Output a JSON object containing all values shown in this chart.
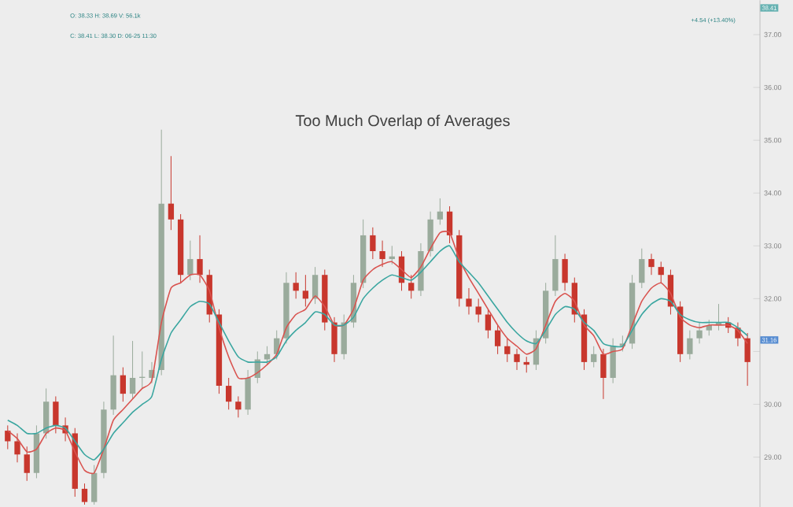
{
  "chart_data": {
    "type": "candlestick",
    "title": "Too Much Overlap of Averages",
    "annotations": [
      "O: 38.33 H: 38.69 V: 56.1k",
      "C: 38.41 L: 38.30 D: 06-25 11:30",
      "+4.54 (+13.40%)",
      "38.41",
      "31.16"
    ],
    "categories": [
      null,
      null,
      null,
      null,
      null,
      null,
      null,
      null,
      null,
      null,
      null,
      null,
      null,
      null,
      null,
      null,
      null,
      null,
      null,
      null,
      null,
      null,
      null,
      null,
      null,
      null,
      null,
      null,
      null,
      null,
      null,
      null,
      null,
      null,
      null,
      null,
      null,
      null,
      null,
      null,
      null,
      null,
      null,
      null,
      null,
      null,
      null,
      null,
      null,
      null,
      null,
      null,
      null,
      null,
      null,
      null,
      null,
      null,
      null,
      null,
      null,
      null,
      null,
      null,
      null,
      null,
      null,
      null,
      null,
      null,
      null,
      null,
      null,
      null,
      null,
      null,
      null,
      null
    ],
    "ohlc": [
      [
        29.5,
        29.6,
        29.15,
        29.3
      ],
      [
        29.3,
        29.45,
        28.9,
        29.05
      ],
      [
        29.05,
        29.2,
        28.55,
        28.7
      ],
      [
        28.7,
        29.6,
        28.6,
        29.45
      ],
      [
        29.45,
        30.3,
        29.35,
        30.05
      ],
      [
        30.05,
        30.15,
        29.45,
        29.6
      ],
      [
        29.6,
        29.75,
        29.3,
        29.45
      ],
      [
        29.45,
        29.55,
        28.25,
        28.4
      ],
      [
        28.4,
        28.5,
        28.1,
        28.15
      ],
      [
        28.15,
        28.85,
        28.1,
        28.7
      ],
      [
        28.7,
        30.05,
        28.6,
        29.9
      ],
      [
        29.9,
        31.3,
        29.8,
        30.55
      ],
      [
        30.55,
        30.7,
        30.05,
        30.2
      ],
      [
        30.2,
        31.2,
        30.1,
        30.5
      ],
      [
        30.5,
        31.0,
        30.3,
        30.5
      ],
      [
        30.5,
        30.8,
        30.4,
        30.65
      ],
      [
        30.65,
        35.2,
        30.55,
        33.8
      ],
      [
        33.8,
        34.7,
        33.3,
        33.5
      ],
      [
        33.5,
        33.6,
        32.3,
        32.45
      ],
      [
        32.45,
        33.1,
        32.35,
        32.75
      ],
      [
        32.75,
        33.2,
        32.3,
        32.45
      ],
      [
        32.45,
        32.55,
        31.55,
        31.7
      ],
      [
        31.7,
        31.8,
        30.2,
        30.35
      ],
      [
        30.35,
        30.5,
        29.9,
        30.05
      ],
      [
        30.05,
        30.15,
        29.75,
        29.9
      ],
      [
        29.9,
        30.65,
        29.8,
        30.5
      ],
      [
        30.5,
        31.0,
        30.4,
        30.85
      ],
      [
        30.85,
        31.1,
        30.75,
        30.95
      ],
      [
        30.95,
        31.4,
        30.85,
        31.25
      ],
      [
        31.25,
        32.5,
        31.15,
        32.3
      ],
      [
        32.3,
        32.5,
        32.0,
        32.15
      ],
      [
        32.15,
        32.45,
        31.85,
        32.0
      ],
      [
        32.0,
        32.6,
        31.9,
        32.45
      ],
      [
        32.45,
        32.55,
        31.4,
        31.55
      ],
      [
        31.55,
        31.65,
        30.8,
        30.95
      ],
      [
        30.95,
        31.7,
        30.85,
        31.55
      ],
      [
        31.55,
        32.45,
        31.45,
        32.3
      ],
      [
        32.3,
        33.5,
        32.2,
        33.2
      ],
      [
        33.2,
        33.35,
        32.75,
        32.9
      ],
      [
        32.9,
        33.1,
        32.6,
        32.75
      ],
      [
        32.75,
        33.0,
        32.65,
        32.8
      ],
      [
        32.8,
        32.9,
        32.15,
        32.3
      ],
      [
        32.3,
        32.45,
        32.0,
        32.15
      ],
      [
        32.15,
        33.05,
        32.05,
        32.9
      ],
      [
        32.9,
        33.65,
        32.8,
        33.5
      ],
      [
        33.5,
        33.9,
        33.4,
        33.65
      ],
      [
        33.65,
        33.75,
        33.05,
        33.2
      ],
      [
        33.2,
        33.3,
        31.85,
        32.0
      ],
      [
        32.0,
        32.2,
        31.7,
        31.85
      ],
      [
        31.85,
        32.0,
        31.55,
        31.7
      ],
      [
        31.7,
        31.8,
        31.25,
        31.4
      ],
      [
        31.4,
        31.5,
        30.95,
        31.1
      ],
      [
        31.1,
        31.25,
        30.8,
        30.95
      ],
      [
        30.95,
        31.05,
        30.65,
        30.8
      ],
      [
        30.8,
        30.9,
        30.6,
        30.75
      ],
      [
        30.75,
        31.4,
        30.65,
        31.25
      ],
      [
        31.25,
        32.3,
        31.15,
        32.15
      ],
      [
        32.15,
        33.2,
        32.05,
        32.75
      ],
      [
        32.75,
        32.85,
        32.15,
        32.3
      ],
      [
        32.3,
        32.4,
        31.55,
        31.7
      ],
      [
        31.7,
        31.8,
        30.65,
        30.8
      ],
      [
        30.8,
        31.1,
        30.7,
        30.95
      ],
      [
        30.95,
        31.05,
        30.1,
        30.5
      ],
      [
        30.5,
        31.25,
        30.4,
        31.1
      ],
      [
        31.1,
        31.3,
        31.0,
        31.15
      ],
      [
        31.15,
        32.45,
        31.05,
        32.3
      ],
      [
        32.3,
        32.95,
        32.2,
        32.75
      ],
      [
        32.75,
        32.85,
        32.45,
        32.6
      ],
      [
        32.6,
        32.7,
        32.3,
        32.45
      ],
      [
        32.45,
        32.55,
        31.7,
        31.85
      ],
      [
        31.85,
        31.95,
        30.8,
        30.95
      ],
      [
        30.95,
        31.4,
        30.85,
        31.25
      ],
      [
        31.25,
        31.55,
        31.15,
        31.4
      ],
      [
        31.4,
        31.6,
        31.3,
        31.5
      ],
      [
        31.5,
        31.9,
        31.4,
        31.55
      ],
      [
        31.55,
        31.65,
        31.35,
        31.45
      ],
      [
        31.45,
        31.55,
        31.1,
        31.25
      ],
      [
        31.25,
        31.35,
        30.35,
        30.8
      ]
    ],
    "colors": [
      "#c8372d",
      "#c8372d",
      "#c8372d",
      "#9aab9c",
      "#9aab9c",
      "#c8372d",
      "#c8372d",
      "#c8372d",
      "#c8372d",
      "#9aab9c",
      "#9aab9c",
      "#9aab9c",
      "#c8372d",
      "#9aab9c",
      "#9aab9c",
      "#9aab9c",
      "#9aab9c",
      "#c8372d",
      "#c8372d",
      "#9aab9c",
      "#c8372d",
      "#c8372d",
      "#c8372d",
      "#c8372d",
      "#c8372d",
      "#9aab9c",
      "#9aab9c",
      "#9aab9c",
      "#9aab9c",
      "#9aab9c",
      "#c8372d",
      "#c8372d",
      "#9aab9c",
      "#c8372d",
      "#c8372d",
      "#9aab9c",
      "#9aab9c",
      "#9aab9c",
      "#c8372d",
      "#c8372d",
      "#9aab9c",
      "#c8372d",
      "#c8372d",
      "#9aab9c",
      "#9aab9c",
      "#9aab9c",
      "#c8372d",
      "#c8372d",
      "#c8372d",
      "#c8372d",
      "#c8372d",
      "#c8372d",
      "#c8372d",
      "#c8372d",
      "#c8372d",
      "#9aab9c",
      "#9aab9c",
      "#9aab9c",
      "#c8372d",
      "#c8372d",
      "#c8372d",
      "#9aab9c",
      "#c8372d",
      "#9aab9c",
      "#9aab9c",
      "#9aab9c",
      "#9aab9c",
      "#c8372d",
      "#c8372d",
      "#c8372d",
      "#c8372d",
      "#9aab9c",
      "#9aab9c",
      "#9aab9c",
      "#9aab9c",
      "#c8372d",
      "#c8372d",
      "#c8372d"
    ],
    "series": [
      {
        "type": "line",
        "color": "#d9534f",
        "values": [
          29.5,
          29.35,
          29.1,
          29.15,
          29.45,
          29.55,
          29.5,
          29.1,
          28.75,
          28.7,
          29.15,
          29.7,
          29.9,
          30.1,
          30.3,
          30.45,
          31.55,
          32.2,
          32.3,
          32.45,
          32.45,
          32.15,
          31.45,
          30.9,
          30.5,
          30.5,
          30.6,
          30.75,
          30.95,
          31.45,
          31.7,
          31.8,
          32.05,
          31.85,
          31.5,
          31.5,
          31.8,
          32.35,
          32.55,
          32.65,
          32.7,
          32.55,
          32.4,
          32.6,
          32.95,
          33.25,
          33.25,
          32.75,
          32.4,
          32.1,
          31.8,
          31.5,
          31.25,
          31.1,
          30.95,
          31.05,
          31.5,
          31.95,
          32.1,
          31.95,
          31.5,
          31.3,
          30.95,
          31.0,
          31.05,
          31.5,
          31.95,
          32.2,
          32.3,
          32.1,
          31.65,
          31.5,
          31.45,
          31.5,
          31.5,
          31.5,
          31.4,
          31.15
        ]
      },
      {
        "type": "line",
        "color": "#3aa6a0",
        "values": [
          29.7,
          29.6,
          29.45,
          29.45,
          29.55,
          29.6,
          29.55,
          29.3,
          29.05,
          28.95,
          29.15,
          29.45,
          29.65,
          29.85,
          30.0,
          30.15,
          30.85,
          31.35,
          31.6,
          31.85,
          31.95,
          31.9,
          31.55,
          31.2,
          30.9,
          30.8,
          30.8,
          30.8,
          30.9,
          31.2,
          31.4,
          31.55,
          31.75,
          31.7,
          31.5,
          31.5,
          31.65,
          32.0,
          32.2,
          32.35,
          32.45,
          32.4,
          32.35,
          32.5,
          32.7,
          32.9,
          33.0,
          32.7,
          32.5,
          32.3,
          32.05,
          31.8,
          31.55,
          31.35,
          31.2,
          31.15,
          31.4,
          31.7,
          31.85,
          31.8,
          31.55,
          31.4,
          31.15,
          31.1,
          31.1,
          31.4,
          31.7,
          31.9,
          32.0,
          31.95,
          31.7,
          31.6,
          31.55,
          31.55,
          31.55,
          31.55,
          31.45,
          31.3
        ]
      }
    ],
    "ylim": [
      28.05,
      37.65
    ],
    "yticks": [
      {
        "value": 29,
        "label": "29.00"
      },
      {
        "value": 30,
        "label": "30.00"
      },
      {
        "value": 31,
        "label": null
      },
      {
        "value": 32,
        "label": "32.00"
      },
      {
        "value": 33,
        "label": "33.00"
      },
      {
        "value": 34,
        "label": "34.00"
      },
      {
        "value": 35,
        "label": "35.00"
      },
      {
        "value": 36,
        "label": "36.00"
      },
      {
        "value": 37,
        "label": "37.00"
      }
    ],
    "tick_labels": "y"
  }
}
